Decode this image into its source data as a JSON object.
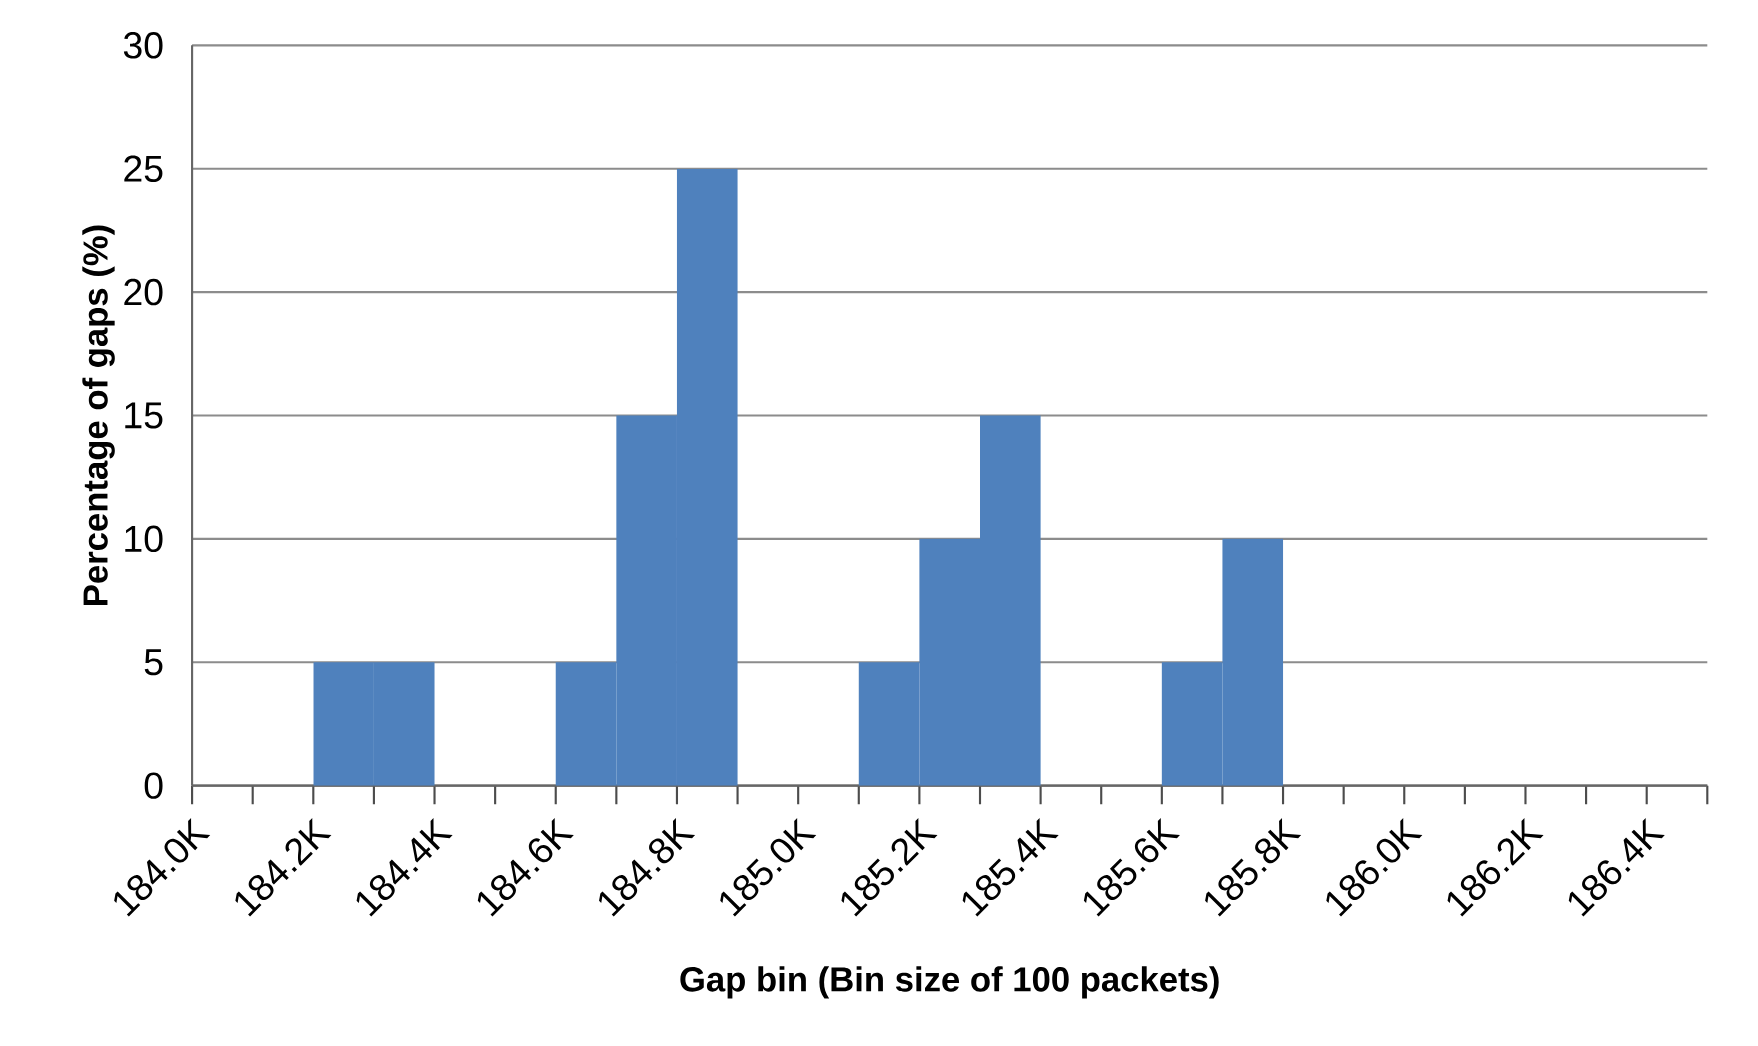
{
  "chart_data": {
    "type": "histogram",
    "xlabel": "Gap bin (Bin size of 100 packets)",
    "ylabel": "Percentage of gaps (%)",
    "bins": [
      184.0,
      184.1,
      184.2,
      184.3,
      184.4,
      184.5,
      184.6,
      184.7,
      184.8,
      184.9,
      185.0,
      185.1,
      185.2,
      185.3,
      185.4,
      185.5,
      185.6,
      185.7,
      185.8,
      185.9,
      186.0,
      186.1,
      186.2,
      186.3,
      186.4,
      186.5
    ],
    "values": [
      0,
      0,
      5,
      5,
      0,
      0,
      5,
      15,
      25,
      0,
      0,
      5,
      10,
      15,
      0,
      0,
      5,
      10,
      0,
      0,
      0,
      0,
      0,
      0,
      0
    ],
    "color": "#4f81bd",
    "xlim": [
      184.0,
      186.5
    ],
    "xticks": [
      {
        "value": 184.0,
        "label": "184.0K"
      },
      {
        "value": 184.1,
        "label": null
      },
      {
        "value": 184.2,
        "label": "184.2K"
      },
      {
        "value": 184.3,
        "label": null
      },
      {
        "value": 184.4,
        "label": "184.4K"
      },
      {
        "value": 184.5,
        "label": null
      },
      {
        "value": 184.6,
        "label": "184.6K"
      },
      {
        "value": 184.7,
        "label": null
      },
      {
        "value": 184.8,
        "label": "184.8K"
      },
      {
        "value": 184.9,
        "label": null
      },
      {
        "value": 185.0,
        "label": "185.0K"
      },
      {
        "value": 185.1,
        "label": null
      },
      {
        "value": 185.2,
        "label": "185.2K"
      },
      {
        "value": 185.3,
        "label": null
      },
      {
        "value": 185.4,
        "label": "185.4K"
      },
      {
        "value": 185.5,
        "label": null
      },
      {
        "value": 185.6,
        "label": "185.6K"
      },
      {
        "value": 185.7,
        "label": null
      },
      {
        "value": 185.8,
        "label": "185.8K"
      },
      {
        "value": 185.9,
        "label": null
      },
      {
        "value": 186.0,
        "label": "186.0K"
      },
      {
        "value": 186.1,
        "label": null
      },
      {
        "value": 186.2,
        "label": "186.2K"
      },
      {
        "value": 186.3,
        "label": null
      },
      {
        "value": 186.4,
        "label": "186.4K"
      },
      {
        "value": 186.5,
        "label": null
      }
    ],
    "ylim": [
      0,
      30
    ],
    "yticks": [
      0,
      5,
      10,
      15,
      20,
      25,
      30
    ],
    "grid": "y"
  }
}
